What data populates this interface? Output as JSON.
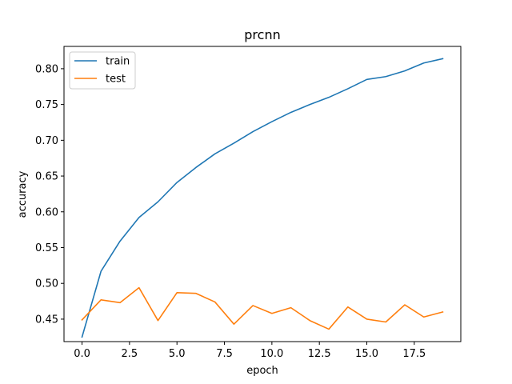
{
  "chart_data": {
    "type": "line",
    "title": "prcnn",
    "xlabel": "epoch",
    "ylabel": "accuracy",
    "x": [
      0,
      1,
      2,
      3,
      4,
      5,
      6,
      7,
      8,
      9,
      10,
      11,
      12,
      13,
      14,
      15,
      16,
      17,
      18,
      19
    ],
    "xlim": [
      -0.95,
      19.95
    ],
    "ylim": [
      0.4186,
      0.8312
    ],
    "xticks": [
      0.0,
      2.5,
      5.0,
      7.5,
      10.0,
      12.5,
      15.0,
      17.5
    ],
    "xtick_labels": [
      "0.0",
      "2.5",
      "5.0",
      "7.5",
      "10.0",
      "12.5",
      "15.0",
      "17.5"
    ],
    "yticks": [
      0.45,
      0.5,
      0.55,
      0.6,
      0.65,
      0.7,
      0.75,
      0.8
    ],
    "ytick_labels": [
      "0.45",
      "0.50",
      "0.55",
      "0.60",
      "0.65",
      "0.70",
      "0.75",
      "0.80"
    ],
    "grid": false,
    "legend_position": "top-left",
    "series": [
      {
        "name": "train",
        "color": "#1f77b4",
        "values": [
          0.425,
          0.517,
          0.559,
          0.592,
          0.614,
          0.641,
          0.662,
          0.681,
          0.696,
          0.712,
          0.726,
          0.739,
          0.75,
          0.76,
          0.772,
          0.785,
          0.789,
          0.797,
          0.808,
          0.814
        ]
      },
      {
        "name": "test",
        "color": "#ff7f0e",
        "values": [
          0.449,
          0.477,
          0.473,
          0.494,
          0.448,
          0.487,
          0.486,
          0.474,
          0.443,
          0.469,
          0.458,
          0.466,
          0.448,
          0.436,
          0.467,
          0.45,
          0.446,
          0.47,
          0.453,
          0.46
        ]
      }
    ]
  }
}
